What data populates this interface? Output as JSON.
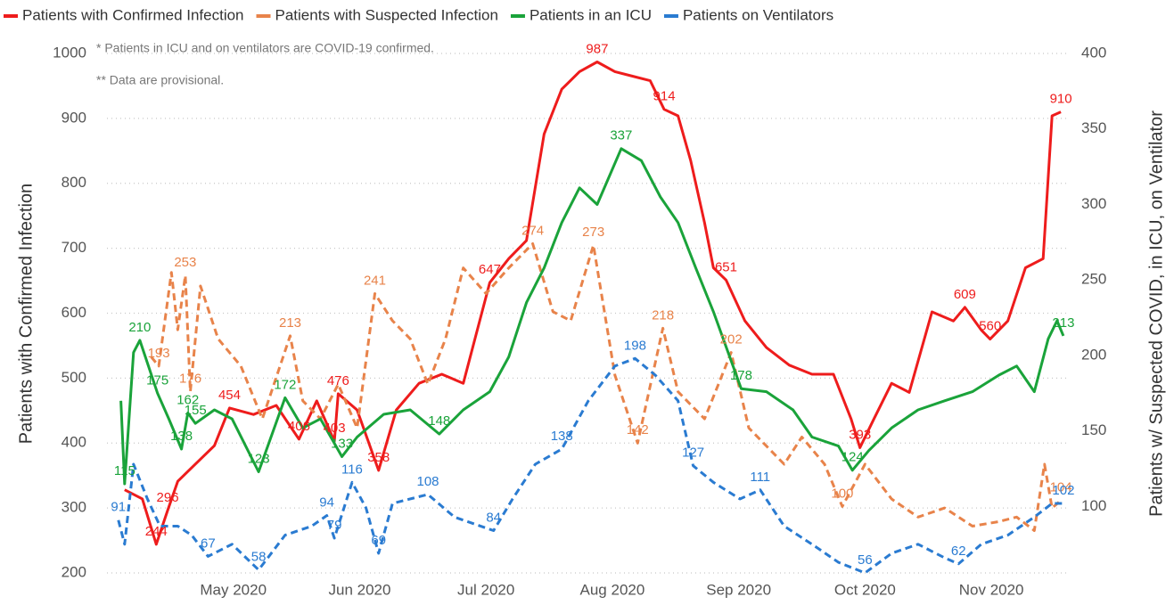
{
  "chart_data": {
    "type": "line",
    "y_label": "Patients with Confirmed Infection",
    "y2_label": "Patients w/ Suspected COVID, in ICU, on Ventilator",
    "notes": [
      "* Patients in ICU and on ventilators are COVID-19 confirmed.",
      "** Data are provisional."
    ],
    "xlim": [
      4,
      11.62
    ],
    "xticks": [
      {
        "value": 5,
        "label": "May 2020"
      },
      {
        "value": 6,
        "label": "Jun 2020"
      },
      {
        "value": 7,
        "label": "Jul 2020"
      },
      {
        "value": 8,
        "label": "Aug 2020"
      },
      {
        "value": 9,
        "label": "Sep 2020"
      },
      {
        "value": 10,
        "label": "Oct 2020"
      },
      {
        "value": 11,
        "label": "Nov 2020"
      }
    ],
    "ylim": [
      200,
      1000
    ],
    "yticks": [
      200,
      300,
      400,
      500,
      600,
      700,
      800,
      900,
      1000
    ],
    "y2lim": [
      56,
      400
    ],
    "y2ticks": [
      100,
      150,
      200,
      250,
      300,
      350,
      400
    ],
    "grid": true,
    "legend": "top",
    "series": [
      {
        "name": "Patients with Confirmed Infection",
        "color": "#ee1c1c",
        "axis": "y",
        "style": "solid",
        "x": [
          4.14,
          4.28,
          4.39,
          4.48,
          4.56,
          4.67,
          4.85,
          4.97,
          5.16,
          5.34,
          5.52,
          5.66,
          5.8,
          5.83,
          5.98,
          6.15,
          6.29,
          6.47,
          6.65,
          6.82,
          7.03,
          7.18,
          7.32,
          7.46,
          7.6,
          7.74,
          7.88,
          8.02,
          8.16,
          8.3,
          8.41,
          8.52,
          8.62,
          8.73,
          8.8,
          8.9,
          9.05,
          9.22,
          9.4,
          9.58,
          9.75,
          9.89,
          9.96,
          10.07,
          10.21,
          10.35,
          10.53,
          10.7,
          10.79,
          10.92,
          10.99,
          11.13,
          11.27,
          11.41,
          11.48,
          11.55
        ],
        "values": [
          328,
          314,
          244,
          296,
          341,
          362,
          396,
          454,
          444,
          458,
          406,
          465,
          403,
          476,
          451,
          358,
          451,
          492,
          506,
          492,
          647,
          684,
          712,
          876,
          945,
          972,
          987,
          972,
          965,
          958,
          914,
          904,
          835,
          739,
          670,
          651,
          588,
          547,
          520,
          506,
          506,
          437,
          393,
          437,
          492,
          478,
          602,
          588,
          609,
          574,
          560,
          588,
          670,
          684,
          904,
          910
        ],
        "value_labels": [
          null,
          null,
          "244",
          "296",
          null,
          null,
          null,
          "454",
          null,
          null,
          "406",
          null,
          "403",
          "476",
          null,
          "358",
          null,
          null,
          null,
          null,
          "647",
          null,
          null,
          null,
          null,
          null,
          "987",
          null,
          null,
          null,
          "914",
          null,
          null,
          null,
          null,
          "651",
          null,
          null,
          null,
          null,
          null,
          null,
          "393",
          null,
          null,
          null,
          null,
          null,
          "609",
          null,
          "560",
          null,
          null,
          null,
          null,
          "910"
        ]
      },
      {
        "name": "Patients with Suspected Infection",
        "color": "#e8834a",
        "axis": "y2",
        "style": "dashed",
        "x": [
          4.35,
          4.41,
          4.51,
          4.56,
          4.62,
          4.66,
          4.74,
          4.88,
          5.06,
          5.23,
          5.45,
          5.55,
          5.69,
          5.83,
          5.98,
          6.12,
          6.26,
          6.4,
          6.54,
          6.68,
          6.82,
          7.0,
          7.18,
          7.37,
          7.53,
          7.67,
          7.85,
          8.02,
          8.2,
          8.4,
          8.52,
          8.73,
          8.94,
          9.08,
          9.22,
          9.36,
          9.5,
          9.68,
          9.82,
          10.0,
          10.21,
          10.42,
          10.63,
          10.85,
          11.06,
          11.2,
          11.34,
          11.42,
          11.48,
          11.55
        ],
        "values": [
          199,
          193,
          255,
          217,
          253,
          176,
          246,
          211,
          193,
          158,
          213,
          170,
          158,
          181,
          152,
          241,
          223,
          211,
          181,
          211,
          258,
          241,
          258,
          274,
          229,
          223,
          273,
          187,
          142,
          218,
          176,
          158,
          202,
          152,
          140,
          128,
          146,
          128,
          100,
          128,
          105,
          93,
          99,
          87,
          90,
          93,
          84,
          128,
          99,
          104
        ],
        "value_labels": [
          null,
          "193",
          null,
          null,
          "253",
          "176",
          null,
          null,
          null,
          null,
          "213",
          null,
          null,
          null,
          null,
          "241",
          null,
          null,
          null,
          null,
          null,
          null,
          null,
          "274",
          null,
          null,
          "273",
          null,
          "142",
          "218",
          null,
          null,
          "202",
          null,
          null,
          null,
          null,
          null,
          "100",
          null,
          null,
          null,
          null,
          null,
          null,
          null,
          null,
          null,
          null,
          "104"
        ]
      },
      {
        "name": "Patients in an ICU",
        "color": "#1aa33a",
        "axis": "y2",
        "style": "solid",
        "x": [
          4.11,
          4.14,
          4.21,
          4.26,
          4.4,
          4.49,
          4.59,
          4.64,
          4.7,
          4.85,
          4.99,
          5.2,
          5.41,
          5.55,
          5.69,
          5.86,
          5.98,
          6.19,
          6.4,
          6.63,
          6.82,
          7.03,
          7.18,
          7.32,
          7.46,
          7.6,
          7.74,
          7.88,
          8.07,
          8.23,
          8.38,
          8.52,
          8.66,
          8.8,
          9.02,
          9.22,
          9.43,
          9.58,
          9.79,
          9.9,
          10.03,
          10.21,
          10.42,
          10.63,
          10.85,
          11.06,
          11.2,
          11.34,
          11.45,
          11.52,
          11.57
        ],
        "values": [
          170,
          115,
          202,
          210,
          175,
          158,
          138,
          162,
          155,
          164,
          158,
          123,
          172,
          152,
          158,
          133,
          146,
          161,
          164,
          148,
          164,
          176,
          199,
          235,
          258,
          288,
          311,
          300,
          337,
          329,
          305,
          288,
          258,
          229,
          178,
          176,
          164,
          146,
          140,
          124,
          137,
          152,
          164,
          170,
          176,
          187,
          193,
          176,
          211,
          223,
          213
        ],
        "value_labels": [
          null,
          "115",
          null,
          "210",
          "175",
          null,
          "138",
          "162",
          "155",
          null,
          null,
          "123",
          "172",
          null,
          null,
          "133",
          null,
          null,
          null,
          "148",
          null,
          null,
          null,
          null,
          null,
          null,
          null,
          null,
          "337",
          null,
          null,
          null,
          null,
          null,
          "178",
          null,
          null,
          null,
          null,
          "124",
          null,
          null,
          null,
          null,
          null,
          null,
          null,
          null,
          null,
          null,
          "213"
        ]
      },
      {
        "name": "Patients on Ventilators",
        "color": "#2a7bd1",
        "axis": "y2",
        "style": "dashed",
        "x": [
          4.09,
          4.14,
          4.21,
          4.32,
          4.42,
          4.56,
          4.67,
          4.8,
          4.99,
          5.2,
          5.41,
          5.62,
          5.74,
          5.8,
          5.94,
          6.05,
          6.15,
          6.26,
          6.54,
          6.75,
          7.06,
          7.21,
          7.39,
          7.6,
          7.81,
          8.02,
          8.18,
          8.34,
          8.52,
          8.64,
          8.8,
          9.01,
          9.17,
          9.36,
          9.58,
          9.79,
          10.0,
          10.21,
          10.42,
          10.63,
          10.74,
          10.92,
          11.13,
          11.34,
          11.48,
          11.57
        ],
        "values": [
          91,
          75,
          128,
          105,
          87,
          87,
          81,
          67,
          75,
          58,
          81,
          87,
          94,
          79,
          116,
          99,
          69,
          102,
          108,
          93,
          84,
          105,
          128,
          138,
          170,
          193,
          198,
          187,
          170,
          127,
          116,
          105,
          111,
          87,
          75,
          63,
          56,
          69,
          75,
          66,
          62,
          75,
          81,
          93,
          102,
          102
        ],
        "value_labels": [
          "91",
          null,
          null,
          null,
          null,
          null,
          null,
          "67",
          null,
          "58",
          null,
          null,
          "94",
          "79",
          "116",
          null,
          "69",
          null,
          "108",
          null,
          "84",
          null,
          null,
          "138",
          null,
          null,
          "198",
          null,
          null,
          "127",
          null,
          null,
          "111",
          null,
          null,
          null,
          "56",
          null,
          null,
          null,
          "62",
          null,
          null,
          null,
          null,
          "102"
        ]
      }
    ]
  }
}
